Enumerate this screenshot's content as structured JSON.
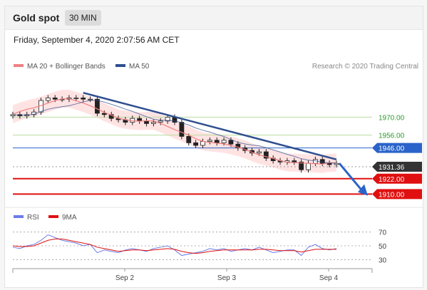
{
  "header": {
    "title": "Gold spot",
    "timeframe": "30 MIN"
  },
  "datetime": "Friday, September 4, 2020 2:07:56 AM CET",
  "colors": {
    "ma20": "#f08080",
    "ma50": "#2f4f8f",
    "rsi": "#6a7de8",
    "rsi_ma": "#e01010",
    "bands": "#ffd0d0",
    "green": "#b8dca0",
    "blue": "#2a63c9",
    "red": "#e01010",
    "dark": "#333333"
  },
  "legend": {
    "ma20_label": "MA 20 + Bollinger Bands",
    "ma50_label": "MA 50",
    "credit": "Research © 2020 Trading Central"
  },
  "rsi_legend": {
    "rsi_label": "RSI",
    "ma_label": "9MA"
  },
  "chart_data": {
    "type": "candlestick",
    "price_ylim": [
      1903,
      2003
    ],
    "price_series": [
      1972,
      1971,
      1972,
      1974,
      1983,
      1985,
      1984,
      1984,
      1985,
      1985,
      1984,
      1984,
      1973,
      1972,
      1969,
      1968,
      1966,
      1969,
      1967,
      1965,
      1966,
      1967,
      1970,
      1966,
      1955,
      1950,
      1948,
      1951,
      1952,
      1950,
      1952,
      1949,
      1946,
      1944,
      1942,
      1943,
      1938,
      1936,
      1935,
      1936,
      1935,
      1929,
      1934,
      1937,
      1934,
      1933,
      1934
    ],
    "levels": [
      {
        "value": 1970.0,
        "label": "1970.00",
        "color": "green"
      },
      {
        "value": 1956.0,
        "label": "1956.00",
        "color": "green"
      },
      {
        "value": 1946.0,
        "label": "1946.00",
        "color": "blue"
      },
      {
        "value": 1931.36,
        "label": "1931.36",
        "color": "dark"
      },
      {
        "value": 1922.0,
        "label": "1922.00",
        "color": "red"
      },
      {
        "value": 1910.0,
        "label": "1910.00",
        "color": "red"
      }
    ],
    "x_ticks": [
      "Sep 2",
      "Sep 3",
      "Sep 4"
    ],
    "rsi_ylim": [
      20,
      80
    ],
    "rsi_ticks": [
      70,
      50,
      30
    ],
    "rsi_values": [
      48,
      46,
      50,
      52,
      58,
      66,
      62,
      58,
      56,
      54,
      50,
      52,
      40,
      44,
      42,
      40,
      44,
      46,
      44,
      42,
      46,
      48,
      50,
      44,
      36,
      38,
      40,
      42,
      46,
      44,
      46,
      42,
      44,
      46,
      44,
      48,
      44,
      40,
      42,
      44,
      44,
      36,
      48,
      52,
      46,
      44,
      46
    ],
    "rsi_ma_values": [
      50,
      49,
      49,
      50,
      54,
      58,
      60,
      60,
      58,
      56,
      54,
      52,
      48,
      46,
      44,
      42,
      43,
      44,
      44,
      43,
      44,
      45,
      46,
      45,
      42,
      40,
      39,
      40,
      42,
      43,
      44,
      44,
      44,
      44,
      44,
      45,
      45,
      44,
      43,
      43,
      43,
      41,
      43,
      45,
      45,
      45,
      45
    ]
  }
}
